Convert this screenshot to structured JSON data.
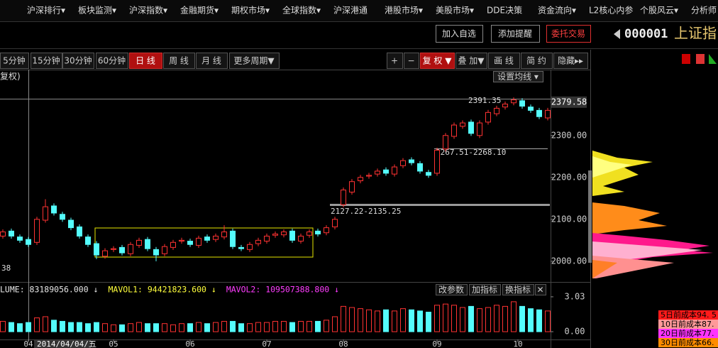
{
  "menu": [
    "沪深排行▾",
    "板块监测▾",
    "沪深指数▾",
    "金融期货▾",
    "期权市场▾",
    "全球指数▾",
    "沪深港通",
    "港股市场▾",
    "美股市场▾",
    "DDE决策",
    "资金流向▾",
    "L2核心内参",
    "个股风云▾",
    "分析师"
  ],
  "toolbar": {
    "buttons": [
      "加入自选",
      "添加提醒",
      "委托交易"
    ],
    "code": "000001",
    "name": "上证指"
  },
  "periods": [
    "5分钟",
    "15分钟",
    "30分钟",
    "60分钟",
    "日 线",
    "周 线",
    "月 线",
    "更多周期▼"
  ],
  "tools": [
    "+",
    "−",
    "复 权 ▼",
    "叠 加▼",
    "画 线",
    "简 约",
    "隐藏▸▸"
  ],
  "chart_data": [
    {
      "type": "candlestick",
      "subtitle": "复权)",
      "button": "设置均线 ▾",
      "up_color": "#ff3232",
      "down_color": "#54fcfc",
      "open": [
        2060,
        2072,
        2058,
        2052,
        2045,
        2098,
        2132,
        2112,
        2098,
        2082,
        2058,
        2042,
        2012,
        2028,
        2033,
        2018,
        2038,
        2052,
        2028,
        2018,
        2033,
        2048,
        2048,
        2038,
        2058,
        2052,
        2058,
        2072,
        2033,
        2028,
        2042,
        2048,
        2062,
        2063,
        2072,
        2048,
        2062,
        2072,
        2068,
        2082,
        2135,
        2165,
        2192,
        2203,
        2208,
        2218,
        2208,
        2228,
        2242,
        2233,
        2212,
        2210,
        2268,
        2298,
        2322,
        2332,
        2300,
        2332,
        2352,
        2368,
        2378,
        2383,
        2368,
        2360,
        2342
      ],
      "high": [
        2076,
        2078,
        2064,
        2058,
        2106,
        2148,
        2138,
        2118,
        2104,
        2088,
        2064,
        2048,
        2031,
        2036,
        2039,
        2046,
        2056,
        2058,
        2034,
        2041,
        2051,
        2056,
        2054,
        2061,
        2064,
        2066,
        2086,
        2078,
        2039,
        2046,
        2056,
        2066,
        2071,
        2076,
        2078,
        2066,
        2076,
        2078,
        2086,
        2106,
        2176,
        2196,
        2206,
        2211,
        2221,
        2224,
        2231,
        2246,
        2248,
        2239,
        2218,
        2271,
        2306,
        2331,
        2336,
        2338,
        2336,
        2361,
        2371,
        2381,
        2391,
        2389,
        2374,
        2366,
        2366
      ],
      "low": [
        2054,
        2054,
        2044,
        2034,
        2039,
        2092,
        2109,
        2094,
        2074,
        2054,
        2034,
        2005,
        2006,
        2022,
        2014,
        2012,
        2032,
        2024,
        2000,
        2012,
        2027,
        2042,
        2034,
        2032,
        2044,
        2046,
        2052,
        2029,
        2024,
        2022,
        2036,
        2042,
        2056,
        2057,
        2044,
        2042,
        2056,
        2059,
        2062,
        2076,
        2129,
        2159,
        2186,
        2197,
        2202,
        2204,
        2202,
        2222,
        2229,
        2209,
        2199,
        2204,
        2262,
        2292,
        2316,
        2299,
        2294,
        2326,
        2346,
        2362,
        2372,
        2364,
        2354,
        2339,
        2336
      ],
      "close": [
        2070,
        2060,
        2050,
        2040,
        2100,
        2130,
        2115,
        2100,
        2080,
        2060,
        2040,
        2015,
        2025,
        2030,
        2020,
        2040,
        2050,
        2030,
        2015,
        2035,
        2045,
        2050,
        2040,
        2055,
        2050,
        2060,
        2070,
        2035,
        2030,
        2040,
        2050,
        2060,
        2065,
        2070,
        2050,
        2060,
        2070,
        2065,
        2080,
        2100,
        2170,
        2190,
        2200,
        2205,
        2215,
        2210,
        2225,
        2240,
        2235,
        2215,
        2205,
        2265,
        2300,
        2325,
        2330,
        2305,
        2330,
        2355,
        2365,
        2375,
        2385,
        2370,
        2360,
        2345,
        2360
      ],
      "ylim": [
        1954,
        2403
      ],
      "yticks": [
        {
          "value": 2000,
          "label": "2000.00"
        },
        {
          "value": 2100,
          "label": "2100.00"
        },
        {
          "value": 2200,
          "label": "2200.00"
        },
        {
          "value": 2300,
          "label": "2300.00"
        },
        {
          "value": 2379.58,
          "label": "2379.58"
        }
      ],
      "annotations": [
        "2391.35",
        "2267.51-2268.10",
        "2127.22-2135.25",
        "38"
      ]
    },
    {
      "type": "bar",
      "legend": [
        "LUME: 83189056.000 ↓",
        "MAVOL1: 94421823.600 ↓",
        "MAVOL2: 109507388.800 ↓"
      ],
      "legend_colors": [
        "#e6e6e6",
        "#ffff3c",
        "#ff3cff"
      ],
      "buttons": [
        "改参数",
        "加指标",
        "换指标",
        "✕"
      ],
      "values": [
        0.9,
        0.8,
        0.7,
        0.8,
        1.2,
        1.3,
        1.0,
        0.9,
        0.8,
        0.8,
        0.7,
        0.8,
        0.7,
        0.6,
        0.6,
        0.7,
        0.8,
        0.7,
        0.7,
        0.7,
        0.6,
        0.7,
        0.7,
        0.8,
        0.7,
        0.8,
        0.9,
        0.9,
        0.7,
        0.7,
        0.8,
        0.8,
        0.9,
        0.9,
        0.8,
        0.9,
        0.9,
        0.9,
        1.0,
        1.3,
        2.2,
        2.1,
        2.0,
        1.9,
        1.8,
        1.9,
        1.8,
        2.0,
        1.9,
        1.8,
        1.7,
        2.3,
        2.4,
        2.3,
        2.1,
        2.2,
        2.0,
        2.1,
        2.3,
        2.2,
        2.6,
        2.2,
        2.0,
        1.9,
        1.8
      ],
      "ylim": [
        -0.8,
        3.95
      ],
      "yticks": [
        {
          "value": 0,
          "label": "0.00"
        },
        {
          "value": 3.03,
          "label": "3.03"
        }
      ],
      "xticks": [
        {
          "value": 3,
          "label": "04"
        },
        {
          "value": 13,
          "label": "05"
        },
        {
          "value": 22,
          "label": "06"
        },
        {
          "value": 31,
          "label": "07"
        },
        {
          "value": 40,
          "label": "08"
        },
        {
          "value": 51,
          "label": "09"
        },
        {
          "value": 60.5,
          "label": "10"
        }
      ],
      "cursor_label": "2014/04/04/五"
    }
  ],
  "chip_legend": [
    "5日前成本94. 5",
    "10日前成本87.",
    "20日前成本77.",
    "30日前成本66."
  ]
}
